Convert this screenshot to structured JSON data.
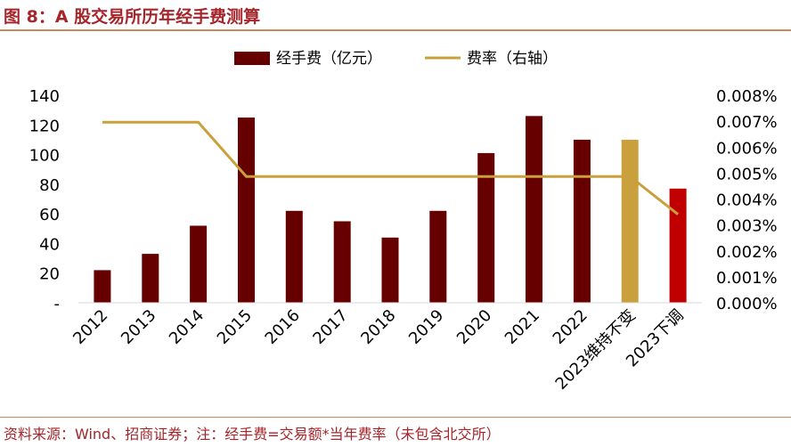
{
  "header": {
    "title": "图 8：A 股交易所历年经手费测算"
  },
  "footer": {
    "source": "资料来源：Wind、招商证券；注：经手费=交易额*当年费率（未包含北交所）"
  },
  "colors": {
    "bar_default": "#660000",
    "bar_2023_unchanged": "#c9a03c",
    "bar_2023_lowered": "#c00000",
    "rate_line": "#c9a03c",
    "title": "#a5252b",
    "rule": "#c98a5a"
  },
  "chart_data": {
    "type": "bar",
    "categories": [
      "2012",
      "2013",
      "2014",
      "2015",
      "2016",
      "2017",
      "2018",
      "2019",
      "2020",
      "2021",
      "2022",
      "2023维持不变",
      "2023下调"
    ],
    "series": [
      {
        "name": "经手费（亿元）",
        "kind": "bar",
        "axis": "left",
        "values": [
          22,
          33,
          52,
          125,
          62,
          55,
          44,
          62,
          101,
          126,
          110,
          110,
          77
        ]
      },
      {
        "name": "费率（右轴）",
        "kind": "line",
        "axis": "right",
        "values": [
          0.00696,
          0.00696,
          0.00696,
          0.00487,
          0.00487,
          0.00487,
          0.00487,
          0.00487,
          0.00487,
          0.00487,
          0.00487,
          0.00487,
          0.00341
        ]
      }
    ],
    "y_left": {
      "lim": [
        0,
        140
      ],
      "ticks": [
        0,
        20,
        40,
        60,
        80,
        100,
        120,
        140
      ],
      "tick_labels": [
        "-",
        "20",
        "40",
        "60",
        "80",
        "100",
        "120",
        "140"
      ]
    },
    "y_right": {
      "lim": [
        0,
        0.008
      ],
      "ticks": [
        0,
        0.001,
        0.002,
        0.003,
        0.004,
        0.005,
        0.006,
        0.007,
        0.008
      ],
      "tick_labels": [
        "0.000%",
        "0.001%",
        "0.002%",
        "0.003%",
        "0.004%",
        "0.005%",
        "0.006%",
        "0.007%",
        "0.008%"
      ]
    },
    "legend_position": "top-center",
    "grid": false,
    "xlabel": "",
    "ylabel": ""
  }
}
